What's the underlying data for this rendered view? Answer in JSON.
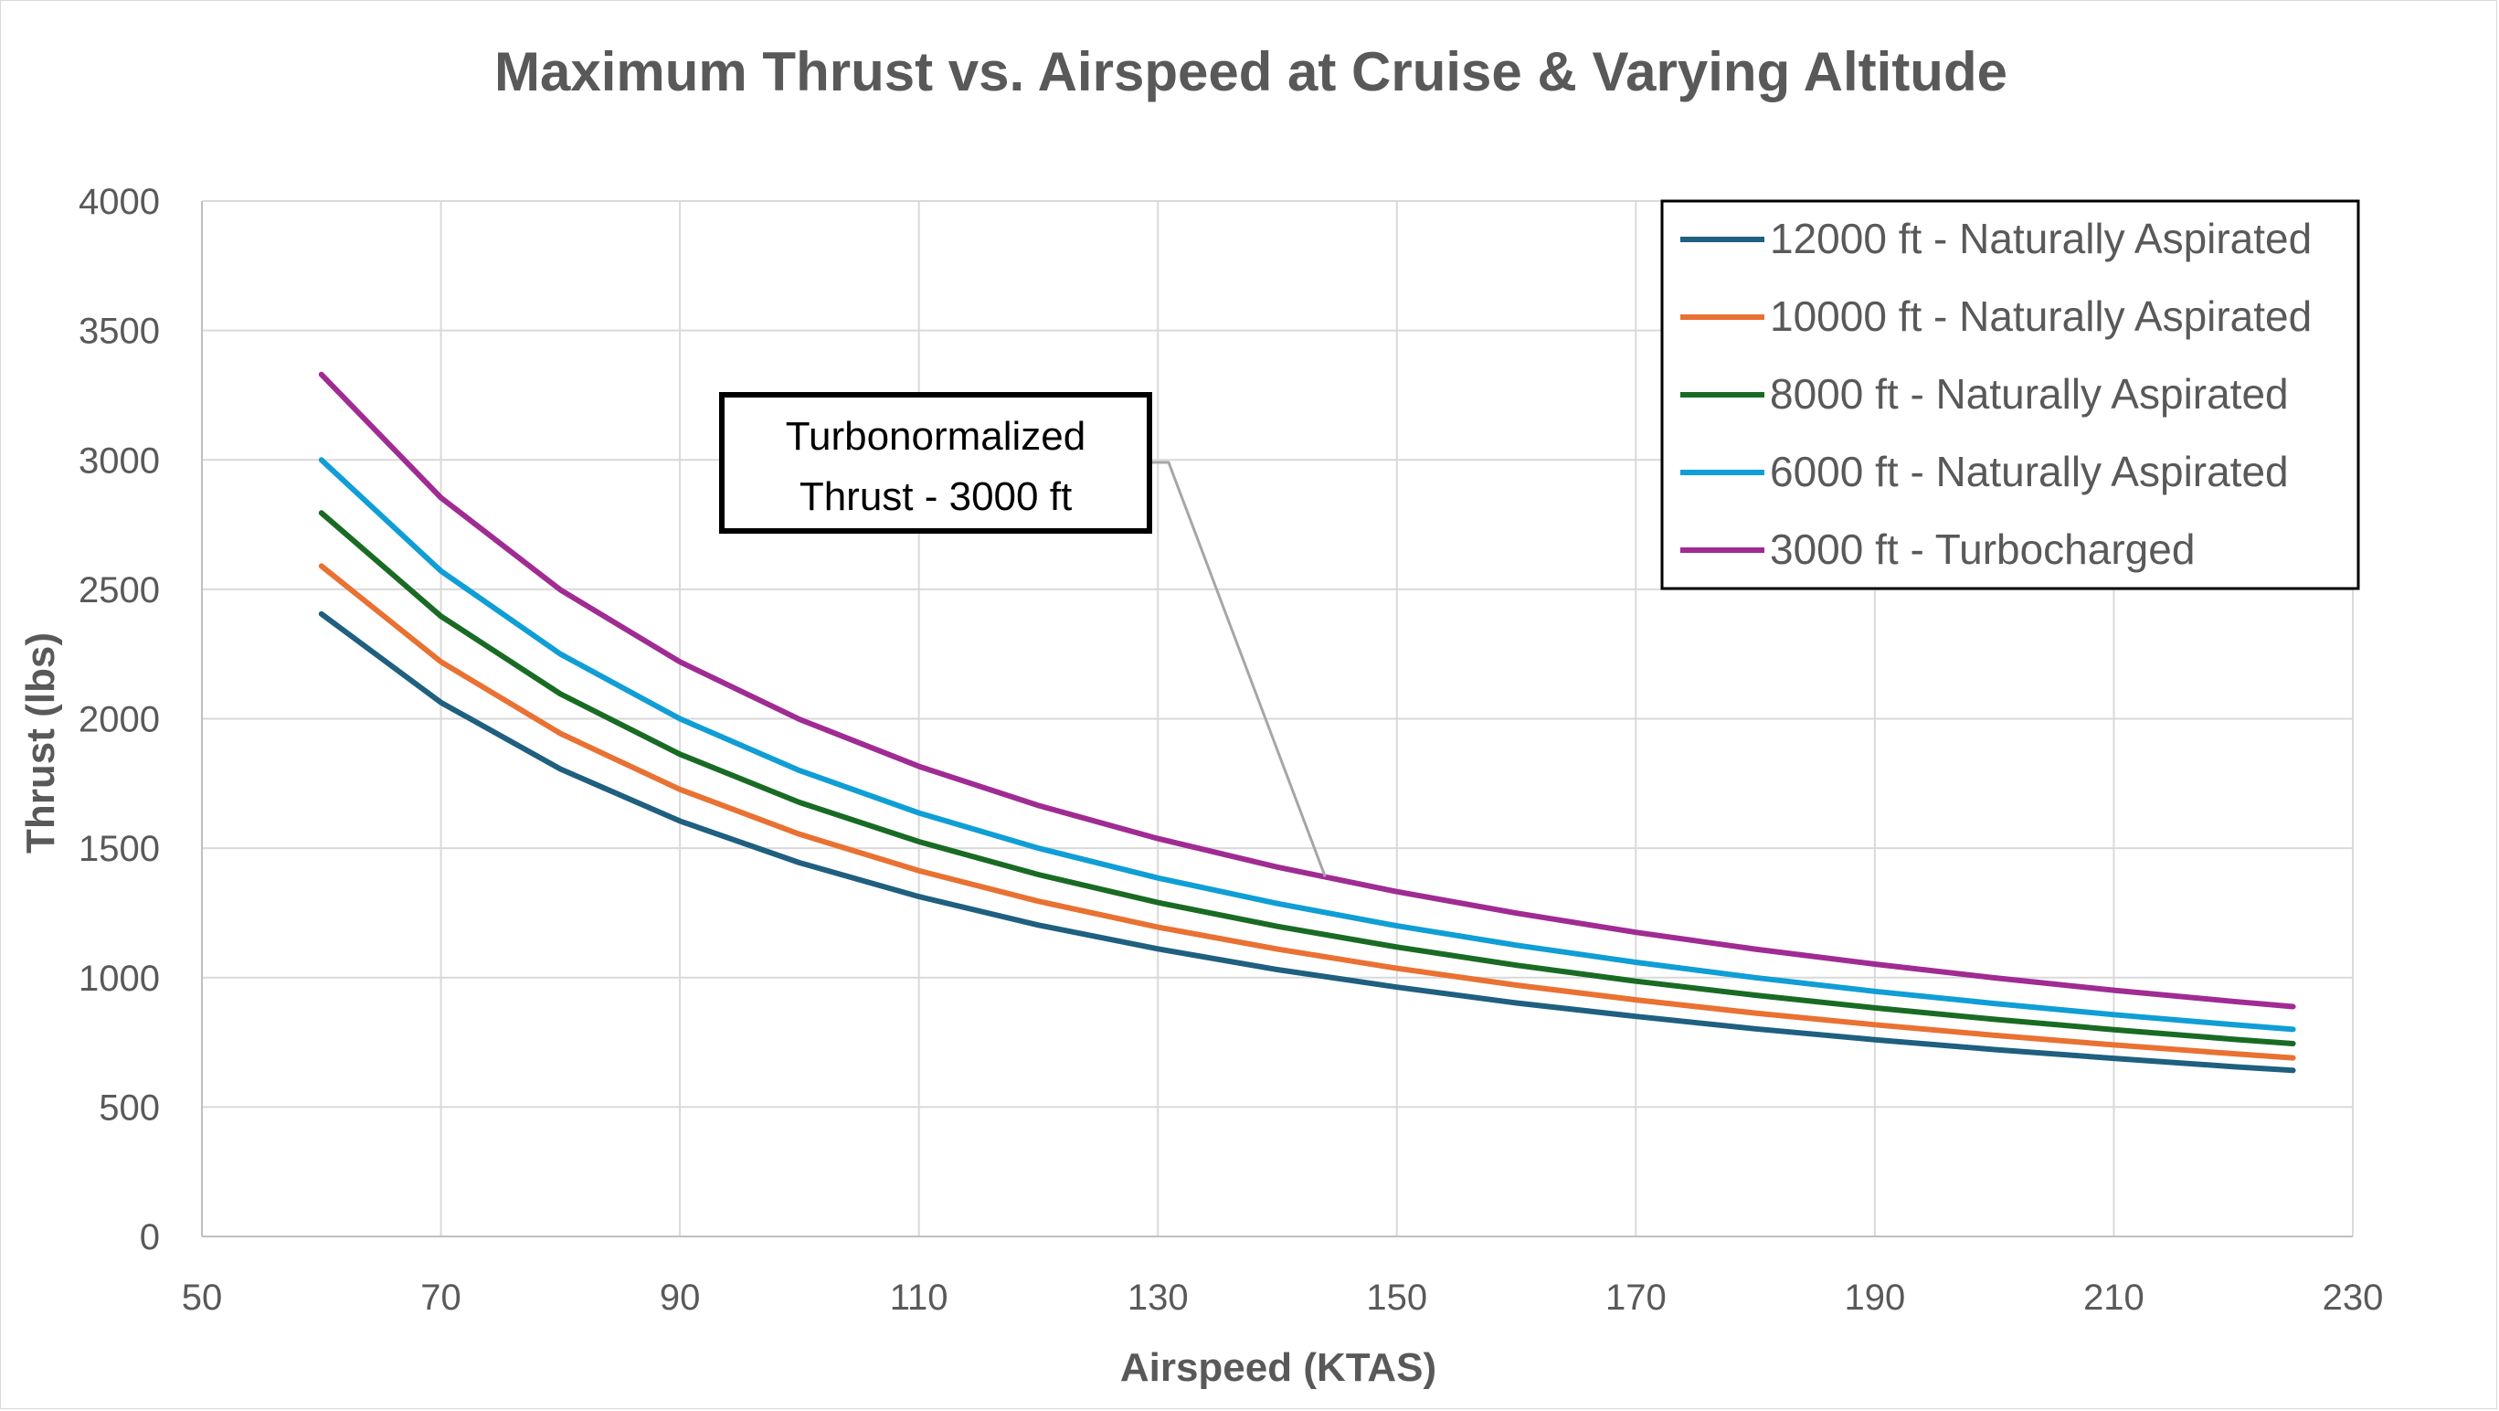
{
  "chart_data": {
    "type": "line",
    "title": "Maximum Thrust vs. Airspeed at Cruise & Varying Altitude",
    "xlabel": "Airspeed (KTAS)",
    "ylabel": "Thrust (lbs)",
    "xlim": [
      50,
      230
    ],
    "ylim": [
      0,
      4000
    ],
    "x_ticks": [
      50,
      70,
      90,
      110,
      130,
      150,
      170,
      190,
      210,
      230
    ],
    "y_ticks": [
      0,
      500,
      1000,
      1500,
      2000,
      2500,
      3000,
      3500,
      4000
    ],
    "grid": true,
    "legend_position": "top-right",
    "x": [
      60,
      70,
      80,
      90,
      100,
      110,
      120,
      130,
      140,
      150,
      160,
      170,
      180,
      190,
      200,
      210,
      220,
      225
    ],
    "series": [
      {
        "name": "12000 ft - Naturally Aspirated",
        "color": "#1f5f7f",
        "values": [
          2405,
          2063,
          1806,
          1605,
          1444,
          1313,
          1203,
          1111,
          1031,
          963,
          902,
          850,
          802,
          760,
          722,
          688,
          656,
          642
        ]
      },
      {
        "name": "10000 ft - Naturally Aspirated",
        "color": "#e97132",
        "values": [
          2590,
          2220,
          1943,
          1727,
          1554,
          1413,
          1295,
          1195,
          1110,
          1036,
          971,
          914,
          863,
          818,
          777,
          740,
          706,
          690
        ]
      },
      {
        "name": "8000 ft - Naturally Aspirated",
        "color": "#196b24",
        "values": [
          2795,
          2396,
          2096,
          1863,
          1677,
          1525,
          1398,
          1290,
          1198,
          1118,
          1048,
          986,
          932,
          883,
          839,
          799,
          762,
          745
        ]
      },
      {
        "name": "6000 ft - Naturally Aspirated",
        "color": "#0f9ed5",
        "values": [
          3000,
          2571,
          2250,
          2000,
          1800,
          1636,
          1500,
          1385,
          1286,
          1200,
          1125,
          1059,
          1000,
          947,
          900,
          857,
          818,
          800
        ]
      },
      {
        "name": "3000 ft - Turbocharged",
        "color": "#a02b93",
        "values": [
          3330,
          2854,
          2498,
          2220,
          1998,
          1816,
          1665,
          1537,
          1427,
          1332,
          1249,
          1175,
          1110,
          1052,
          999,
          951,
          908,
          888
        ]
      }
    ],
    "annotation": {
      "text_lines": [
        "Turbonormalized",
        "Thrust - 3000 ft"
      ],
      "target_x": 144,
      "target_y": 1390
    }
  }
}
